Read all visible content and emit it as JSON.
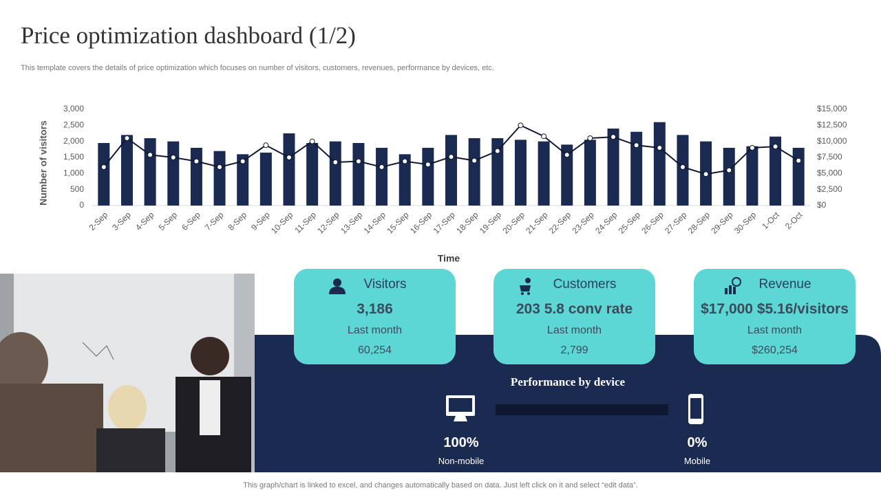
{
  "header": {
    "title": "Price optimization dashboard (1/2)",
    "subtitle": "This template covers the details of price optimization which focuses on number of visitors, customers, revenues, performance by devices, etc."
  },
  "chart_data": {
    "type": "bar",
    "ylabel": "Number of visitors",
    "xlabel": "Time",
    "categories": [
      "2-Sep",
      "3-Sep",
      "4-Sep",
      "5-Sep",
      "6-Sep",
      "7-Sep",
      "8-Sep",
      "9-Sep",
      "10-Sep",
      "11-Sep",
      "12-Sep",
      "13-Sep",
      "14-Sep",
      "15-Sep",
      "16-Sep",
      "17-Sep",
      "18-Sep",
      "19-Sep",
      "20-Sep",
      "21-Sep",
      "22-Sep",
      "23-Sep",
      "24-Sep",
      "25-Sep",
      "26-Sep",
      "27-Sep",
      "28-Sep",
      "29-Sep",
      "30-Sep",
      "1-Oct",
      "2-Oct"
    ],
    "series": [
      {
        "type": "bar",
        "color": "#1b2a50",
        "axis": "y",
        "values": [
          1950,
          2200,
          2100,
          2000,
          1800,
          1700,
          1600,
          1650,
          2250,
          1950,
          2000,
          1950,
          1800,
          1600,
          1800,
          2200,
          2100,
          2100,
          2050,
          2000,
          1900,
          2050,
          2400,
          2300,
          2600,
          2200,
          2000,
          1800,
          1850,
          2150,
          1800
        ]
      },
      {
        "type": "line",
        "color": "#111a33",
        "axis": "y2",
        "values": [
          6000,
          10500,
          7900,
          7500,
          6900,
          6000,
          6900,
          9400,
          7500,
          10000,
          6750,
          6900,
          6000,
          6900,
          6400,
          7600,
          7000,
          8500,
          12500,
          10800,
          7900,
          10500,
          10700,
          9400,
          9000,
          6000,
          4900,
          5500,
          9000,
          9200,
          7000
        ]
      }
    ],
    "ylim": [
      0,
      3000
    ],
    "yticks": [
      0,
      500,
      {
        "value": 1000,
        "label": "1,000"
      },
      {
        "value": 1500,
        "label": "1,500"
      },
      {
        "value": 2000,
        "label": "2,000"
      },
      {
        "value": 2500,
        "label": "2,500"
      },
      {
        "value": 3000,
        "label": "3,000"
      }
    ],
    "y2lim": [
      0,
      15000
    ],
    "y2ticks": [
      {
        "value": 0,
        "label": "$0"
      },
      {
        "value": 2500,
        "label": "$2,500"
      },
      {
        "value": 5000,
        "label": "$5,000"
      },
      {
        "value": 7500,
        "label": "$7,500"
      },
      {
        "value": 10000,
        "label": "$10,000"
      },
      {
        "value": 12500,
        "label": "$12,500"
      },
      {
        "value": 15000,
        "label": "$15,000"
      }
    ],
    "grid": false
  },
  "cards": [
    {
      "title": "Visitors",
      "value": "3,186",
      "period": "Last month",
      "previous": "60,254"
    },
    {
      "title": "Customers",
      "value": "203 5.8 conv rate",
      "period": "Last month",
      "previous": "2,799"
    },
    {
      "title": "Revenue",
      "value": "$17,000 $5.16/visitors",
      "period": "Last month",
      "previous": "$260,254"
    }
  ],
  "performance": {
    "title": "Performance by device",
    "non_mobile": {
      "value": "100%",
      "label": "Non-mobile"
    },
    "mobile": {
      "value": "0%",
      "label": "Mobile"
    }
  },
  "footer": "This graph/chart is linked to excel,  and changes automatically based on data. Just left click on it and select “edit data”."
}
